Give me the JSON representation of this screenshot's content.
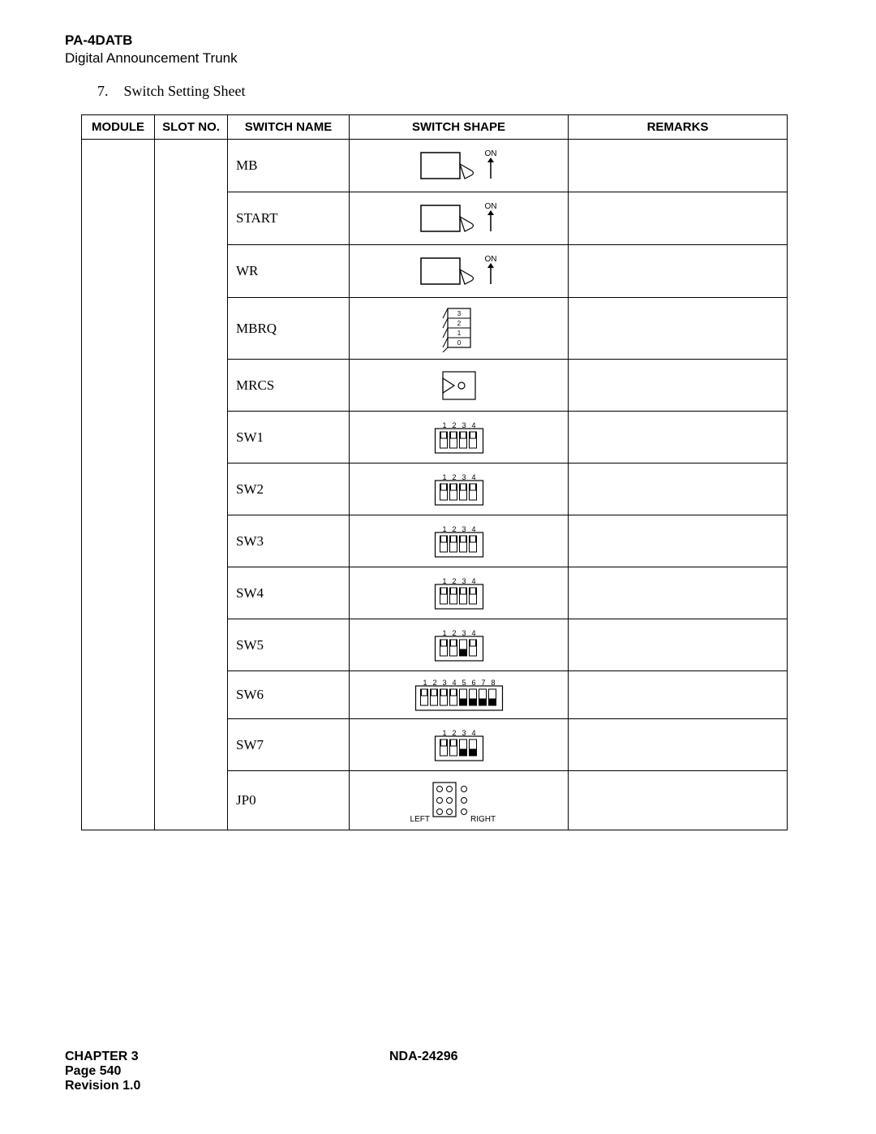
{
  "header": {
    "code": "PA-4DATB",
    "subtitle": "Digital Announcement Trunk"
  },
  "section": {
    "number": "7.",
    "title": "Switch Setting Sheet"
  },
  "table": {
    "headers": {
      "module": "MODULE",
      "slot": "SLOT NO.",
      "name": "SWITCH NAME",
      "shape": "SWITCH SHAPE",
      "remarks": "REMARKS"
    },
    "rows": [
      {
        "name": "MB",
        "shape_type": "toggle_on",
        "remarks": ""
      },
      {
        "name": "START",
        "shape_type": "toggle_on",
        "remarks": ""
      },
      {
        "name": "WR",
        "shape_type": "toggle_on",
        "remarks": ""
      },
      {
        "name": "MBRQ",
        "shape_type": "piano4",
        "remarks": ""
      },
      {
        "name": "MRCS",
        "shape_type": "rotary",
        "remarks": ""
      },
      {
        "name": "SW1",
        "shape_type": "dip",
        "positions": 4,
        "on": [],
        "remarks": ""
      },
      {
        "name": "SW2",
        "shape_type": "dip",
        "positions": 4,
        "on": [],
        "remarks": ""
      },
      {
        "name": "SW3",
        "shape_type": "dip",
        "positions": 4,
        "on": [],
        "remarks": ""
      },
      {
        "name": "SW4",
        "shape_type": "dip",
        "positions": 4,
        "on": [],
        "remarks": ""
      },
      {
        "name": "SW5",
        "shape_type": "dip",
        "positions": 4,
        "on": [
          3
        ],
        "remarks": ""
      },
      {
        "name": "SW6",
        "shape_type": "dip",
        "positions": 8,
        "on": [
          5,
          6,
          7,
          8
        ],
        "remarks": ""
      },
      {
        "name": "SW7",
        "shape_type": "dip",
        "positions": 4,
        "on": [
          3,
          4
        ],
        "remarks": ""
      },
      {
        "name": "JP0",
        "shape_type": "jumper",
        "left_label": "LEFT",
        "right_label": "RIGHT",
        "remarks": ""
      }
    ],
    "on_label": "ON",
    "piano_labels": [
      "3",
      "2",
      "1",
      "0"
    ]
  },
  "footer": {
    "chapter": "CHAPTER 3",
    "page": "Page 540",
    "revision": "Revision 1.0",
    "doc": "NDA-24296"
  },
  "style": {
    "row_height_toggle": 64,
    "row_height_piano": 76,
    "row_height_rotary": 64,
    "row_height_dip4": 64,
    "row_height_dip8": 56,
    "row_height_jumper": 70,
    "stroke_color": "#000000",
    "fill_white": "#ffffff",
    "fill_black": "#000000",
    "font_small": 10,
    "font_smaller": 8
  }
}
